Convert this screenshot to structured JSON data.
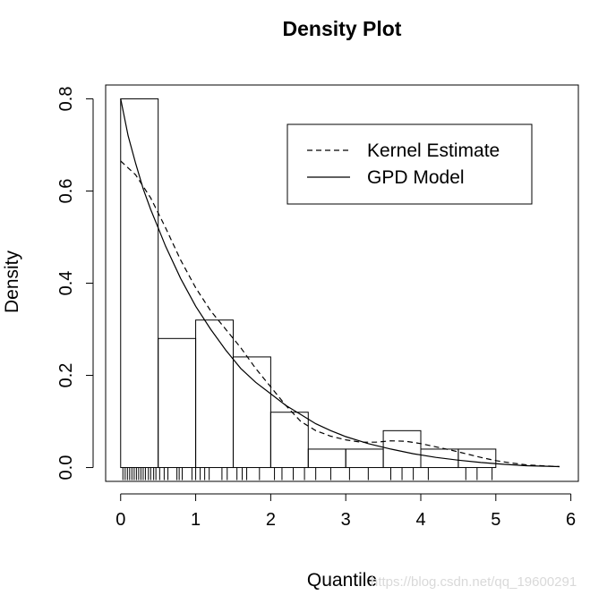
{
  "chart_data": {
    "type": "histogram",
    "title": "Density Plot",
    "xlabel": "Quantile",
    "ylabel": "Density",
    "xlim": [
      -0.2,
      6.1
    ],
    "ylim": [
      -0.03,
      0.83
    ],
    "x_ticks": [
      "0",
      "1",
      "2",
      "3",
      "4",
      "5",
      "6"
    ],
    "y_ticks": [
      "0.0",
      "0.2",
      "0.4",
      "0.6",
      "0.8"
    ],
    "histogram": {
      "bin_width": 0.5,
      "bins": [
        {
          "start": 0.0,
          "density": 0.8
        },
        {
          "start": 0.5,
          "density": 0.28
        },
        {
          "start": 1.0,
          "density": 0.32
        },
        {
          "start": 1.5,
          "density": 0.24
        },
        {
          "start": 2.0,
          "density": 0.12
        },
        {
          "start": 2.5,
          "density": 0.04
        },
        {
          "start": 3.0,
          "density": 0.04
        },
        {
          "start": 3.5,
          "density": 0.08
        },
        {
          "start": 4.0,
          "density": 0.04
        },
        {
          "start": 4.5,
          "density": 0.04
        }
      ]
    },
    "series": [
      {
        "name": "Kernel Estimate",
        "style": "dashed",
        "x": [
          0.0,
          0.2,
          0.4,
          0.6,
          0.8,
          1.0,
          1.2,
          1.4,
          1.6,
          1.8,
          2.0,
          2.2,
          2.4,
          2.6,
          2.8,
          3.0,
          3.2,
          3.4,
          3.6,
          3.8,
          4.0,
          4.2,
          4.4,
          4.6,
          4.8,
          5.0,
          5.2,
          5.4,
          5.6,
          5.85
        ],
        "y": [
          0.665,
          0.635,
          0.585,
          0.52,
          0.45,
          0.39,
          0.34,
          0.3,
          0.26,
          0.215,
          0.175,
          0.135,
          0.1,
          0.08,
          0.068,
          0.06,
          0.055,
          0.055,
          0.058,
          0.057,
          0.052,
          0.045,
          0.038,
          0.03,
          0.022,
          0.015,
          0.01,
          0.006,
          0.004,
          0.002
        ]
      },
      {
        "name": "GPD Model",
        "style": "solid",
        "x": [
          0.0,
          0.1,
          0.2,
          0.3,
          0.4,
          0.5,
          0.6,
          0.8,
          1.0,
          1.2,
          1.4,
          1.6,
          1.8,
          2.0,
          2.2,
          2.4,
          2.6,
          2.8,
          3.0,
          3.3,
          3.6,
          3.9,
          4.2,
          4.5,
          4.8,
          5.1,
          5.4,
          5.85
        ],
        "y": [
          0.8,
          0.72,
          0.66,
          0.605,
          0.56,
          0.52,
          0.48,
          0.41,
          0.35,
          0.3,
          0.255,
          0.215,
          0.185,
          0.16,
          0.135,
          0.115,
          0.095,
          0.08,
          0.067,
          0.052,
          0.04,
          0.03,
          0.022,
          0.016,
          0.011,
          0.007,
          0.004,
          0.002
        ]
      }
    ],
    "rug": [
      0.03,
      0.06,
      0.09,
      0.12,
      0.15,
      0.18,
      0.21,
      0.24,
      0.27,
      0.3,
      0.33,
      0.37,
      0.4,
      0.44,
      0.47,
      0.52,
      0.58,
      0.63,
      0.75,
      0.78,
      0.82,
      0.95,
      1.0,
      1.06,
      1.12,
      1.18,
      1.35,
      1.42,
      1.55,
      1.62,
      1.68,
      1.85,
      2.05,
      2.15,
      2.3,
      2.45,
      2.6,
      2.8,
      3.05,
      3.3,
      3.6,
      3.75,
      3.9,
      4.1,
      4.6,
      4.75,
      4.95
    ],
    "legend": {
      "position": "top-right",
      "box": true
    },
    "grid": false
  },
  "watermark": "https://blog.csdn.net/qq_19600291"
}
